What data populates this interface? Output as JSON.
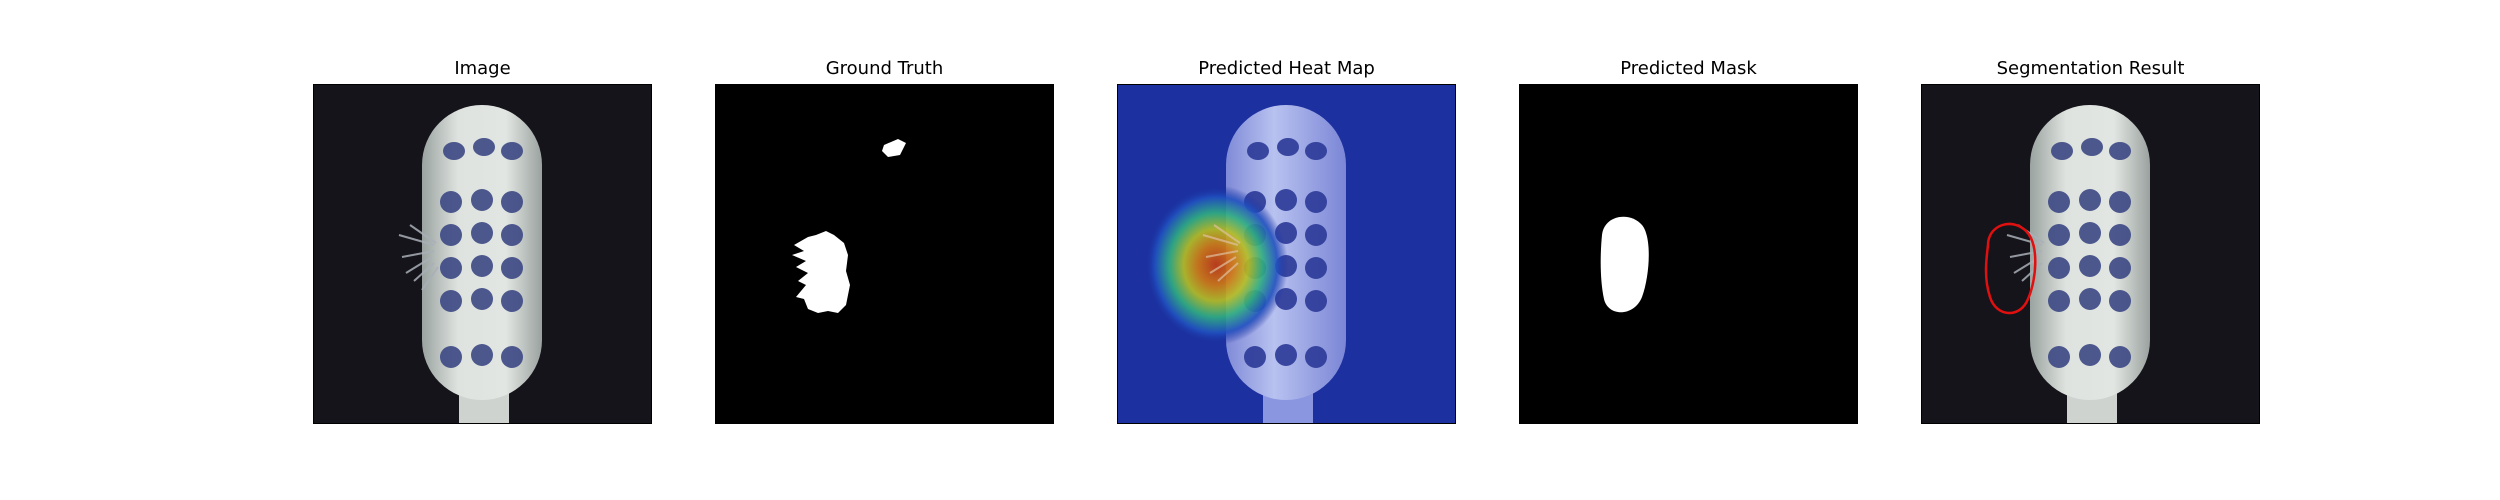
{
  "figure": {
    "panels": [
      {
        "title": "Image"
      },
      {
        "title": "Ground Truth"
      },
      {
        "title": "Predicted Heat Map"
      },
      {
        "title": "Predicted Mask"
      },
      {
        "title": "Segmentation Result"
      }
    ],
    "colors": {
      "photo_background": "#15141a",
      "brush_handle": "#d8dcd6",
      "bristle_tuft": "#3c4884",
      "mask_foreground": "#ffffff",
      "mask_background": "#000000",
      "heatmap_base": "#1a2a9a",
      "heatmap_hot": "#c83c10",
      "contour": "#e01010"
    }
  }
}
